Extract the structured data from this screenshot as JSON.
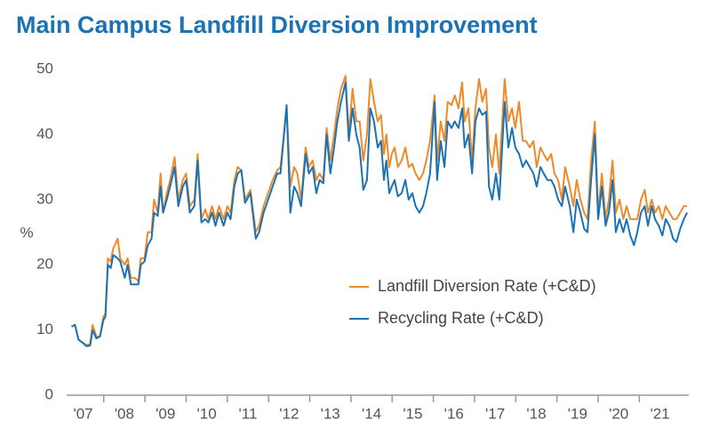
{
  "chart_data": {
    "type": "line",
    "title": "Main Campus Landfill Diversion Improvement",
    "ylabel": "%",
    "ylim": [
      0,
      50
    ],
    "yticks": [
      0,
      10,
      20,
      30,
      40,
      50
    ],
    "xlim": [
      2007.1,
      2022.2
    ],
    "xticks": [
      {
        "value": 2007.5,
        "label": "'07"
      },
      {
        "value": 2008.5,
        "label": "'08"
      },
      {
        "value": 2009.5,
        "label": "'09"
      },
      {
        "value": 2010.5,
        "label": "'10"
      },
      {
        "value": 2011.5,
        "label": "'11"
      },
      {
        "value": 2012.5,
        "label": "'12"
      },
      {
        "value": 2013.5,
        "label": "'13"
      },
      {
        "value": 2014.5,
        "label": "'14"
      },
      {
        "value": 2015.5,
        "label": "'15"
      },
      {
        "value": 2016.5,
        "label": "'16"
      },
      {
        "value": 2017.5,
        "label": "'17"
      },
      {
        "value": 2018.5,
        "label": "'18"
      },
      {
        "value": 2019.5,
        "label": "'19"
      },
      {
        "value": 2020.5,
        "label": "'20"
      },
      {
        "value": 2021.5,
        "label": "'21"
      }
    ],
    "legend": "right",
    "x": [
      2007.22,
      2007.3,
      2007.39,
      2007.5,
      2007.58,
      2007.67,
      2007.73,
      2007.82,
      2007.91,
      2007.99,
      2008.04,
      2008.1,
      2008.17,
      2008.23,
      2008.34,
      2008.4,
      2008.51,
      2008.58,
      2008.66,
      2008.75,
      2008.84,
      2008.9,
      2008.99,
      2009.07,
      2009.16,
      2009.22,
      2009.31,
      2009.38,
      2009.44,
      2009.53,
      2009.61,
      2009.72,
      2009.81,
      2009.92,
      2010.0,
      2010.09,
      2010.2,
      2010.28,
      2010.37,
      2010.46,
      2010.54,
      2010.63,
      2010.71,
      2010.8,
      2010.91,
      2011.0,
      2011.08,
      2011.17,
      2011.25,
      2011.34,
      2011.43,
      2011.56,
      2011.69,
      2011.77,
      2011.88,
      2011.99,
      2012.1,
      2012.21,
      2012.29,
      2012.44,
      2012.53,
      2012.62,
      2012.7,
      2012.79,
      2012.9,
      2012.98,
      2013.07,
      2013.16,
      2013.24,
      2013.33,
      2013.41,
      2013.5,
      2013.59,
      2013.67,
      2013.76,
      2013.87,
      2013.95,
      2014.04,
      2014.13,
      2014.21,
      2014.3,
      2014.39,
      2014.47,
      2014.56,
      2014.65,
      2014.73,
      2014.8,
      2014.86,
      2014.93,
      2014.99,
      2015.06,
      2015.14,
      2015.23,
      2015.32,
      2015.4,
      2015.49,
      2015.57,
      2015.66,
      2015.75,
      2015.83,
      2015.92,
      2016.03,
      2016.09,
      2016.18,
      2016.27,
      2016.35,
      2016.44,
      2016.52,
      2016.61,
      2016.7,
      2016.76,
      2016.85,
      2016.94,
      2017.02,
      2017.11,
      2017.19,
      2017.28,
      2017.35,
      2017.43,
      2017.52,
      2017.6,
      2017.73,
      2017.82,
      2017.91,
      2017.99,
      2018.08,
      2018.17,
      2018.25,
      2018.34,
      2018.43,
      2018.51,
      2018.6,
      2018.68,
      2018.77,
      2018.86,
      2018.94,
      2019.03,
      2019.12,
      2019.2,
      2019.31,
      2019.4,
      2019.48,
      2019.57,
      2019.66,
      2019.74,
      2019.83,
      2019.92,
      2020.0,
      2020.09,
      2020.18,
      2020.26,
      2020.35,
      2020.43,
      2020.52,
      2020.61,
      2020.69,
      2020.78,
      2020.87,
      2020.95,
      2021.04,
      2021.13,
      2021.21,
      2021.3,
      2021.38,
      2021.47,
      2021.56,
      2021.64,
      2021.73,
      2021.82,
      2021.9,
      2021.99,
      2022.08,
      2022.16
    ],
    "series": [
      {
        "name": "Landfill Diversion Rate (+C&D)",
        "color": "#ee8a2a",
        "values": [
          10.5,
          10.8,
          8.5,
          8,
          7.7,
          7.8,
          10.8,
          9,
          9,
          12,
          12.5,
          21,
          20.5,
          22.5,
          24,
          21,
          20,
          21,
          18,
          18,
          17.5,
          21,
          21,
          25,
          25,
          30,
          28,
          34,
          28,
          31,
          33,
          36.5,
          30,
          33,
          34,
          29,
          30,
          37,
          27,
          28.5,
          27,
          29,
          27,
          29,
          27,
          29,
          28,
          33,
          35,
          34.5,
          30,
          31.5,
          25,
          26,
          29,
          31,
          33,
          34.5,
          35,
          44,
          32,
          35,
          34,
          30,
          38,
          35,
          36,
          33,
          34,
          33,
          41,
          36,
          40,
          44,
          47,
          49,
          40,
          47,
          42,
          42,
          36,
          40,
          48.5,
          45,
          42,
          43,
          37,
          40,
          35,
          37,
          38,
          35,
          36,
          38,
          35,
          35.5,
          34,
          33,
          34,
          36,
          39,
          46,
          36,
          42,
          39,
          45,
          44.5,
          46,
          44,
          48,
          42,
          44,
          36,
          44,
          48.5,
          45,
          47,
          38,
          35,
          40,
          34,
          48.5,
          42,
          44,
          41,
          45,
          39,
          39,
          38,
          39,
          35,
          38,
          37,
          36,
          37,
          34,
          33,
          30,
          35,
          32,
          29,
          33,
          30,
          28,
          27,
          36,
          42,
          28,
          34,
          27,
          30,
          36,
          28,
          30,
          27,
          29,
          27,
          27,
          27,
          30,
          31.5,
          28,
          30,
          28,
          29,
          27,
          29,
          28,
          27,
          27,
          28,
          29,
          29
        ]
      },
      {
        "name": "Recycling Rate (+C&D)",
        "color": "#1b72b5",
        "values": [
          10.5,
          10.8,
          8.5,
          8,
          7.5,
          7.6,
          10,
          8.7,
          9,
          11.5,
          12,
          20,
          19.5,
          21.5,
          21,
          20.5,
          18,
          20,
          17,
          17,
          17,
          20,
          20.5,
          23,
          24,
          28,
          27.5,
          32,
          28,
          30,
          32,
          35,
          29,
          32,
          33,
          28,
          29,
          36,
          26.5,
          27,
          26.5,
          28,
          26,
          28,
          26,
          28,
          27,
          32,
          34,
          34.5,
          29.5,
          31,
          24,
          25,
          28,
          30,
          32,
          34,
          34,
          44.5,
          28,
          32,
          31,
          29,
          37,
          34,
          35,
          31,
          33,
          32.5,
          40,
          34,
          38,
          42,
          45,
          48,
          39,
          44,
          40,
          38,
          31.5,
          33,
          44,
          42,
          38,
          39,
          33,
          36,
          31,
          32,
          33,
          30.5,
          31,
          33,
          30,
          31,
          29,
          28,
          29,
          31,
          34,
          45,
          33,
          39,
          35,
          42,
          41,
          42,
          41,
          44,
          38,
          40,
          34,
          42,
          44,
          43,
          43.5,
          32,
          30,
          34,
          30,
          45,
          38,
          41,
          38,
          37,
          35,
          36,
          35,
          34,
          32,
          35,
          34,
          33,
          33,
          32,
          30,
          29,
          32,
          29,
          25,
          30,
          28,
          25.5,
          25,
          33,
          40,
          27,
          32,
          26,
          28,
          33,
          25,
          27,
          25,
          27,
          24.5,
          23,
          25,
          28,
          29,
          26,
          29,
          27,
          26,
          24.5,
          27,
          26,
          24,
          23.5,
          25.5,
          27,
          28
        ]
      }
    ]
  }
}
